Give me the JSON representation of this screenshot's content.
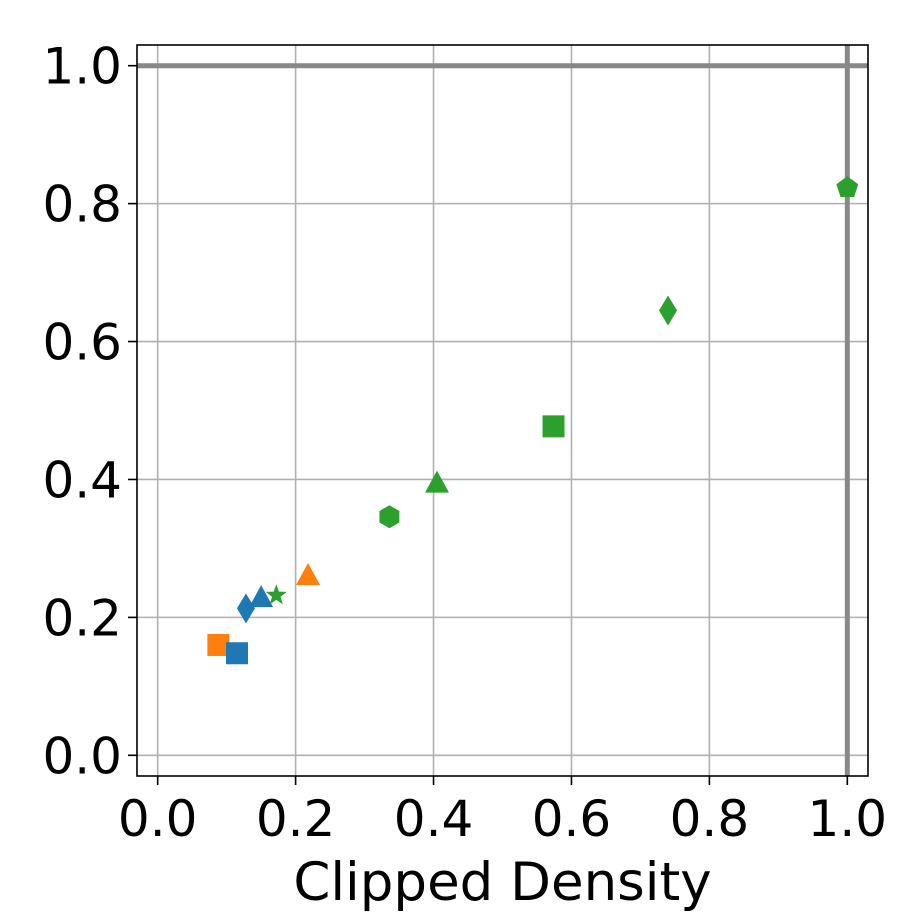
{
  "chart_data": {
    "type": "scatter",
    "title": "",
    "xlabel": "Clipped Density",
    "ylabel": "",
    "xlim": [
      -0.03,
      1.03
    ],
    "ylim": [
      -0.03,
      1.03
    ],
    "x_ticks": [
      "0.0",
      "0.2",
      "0.4",
      "0.6",
      "0.8",
      "1.0"
    ],
    "y_ticks": [
      "0.0",
      "0.2",
      "0.4",
      "0.6",
      "0.8",
      "1.0"
    ],
    "grid": true,
    "reference_lines": [
      {
        "orientation": "horizontal",
        "value": 1.0
      },
      {
        "orientation": "vertical",
        "value": 1.0
      }
    ],
    "points": [
      {
        "x": 0.088,
        "y": 0.16,
        "marker": "square",
        "color": "#ff7f0e"
      },
      {
        "x": 0.115,
        "y": 0.148,
        "marker": "square",
        "color": "#1f77b4"
      },
      {
        "x": 0.128,
        "y": 0.213,
        "marker": "diamond",
        "color": "#1f77b4"
      },
      {
        "x": 0.15,
        "y": 0.228,
        "marker": "triangle",
        "color": "#1f77b4"
      },
      {
        "x": 0.172,
        "y": 0.232,
        "marker": "star",
        "color": "#2ca02c"
      },
      {
        "x": 0.218,
        "y": 0.26,
        "marker": "triangle",
        "color": "#ff7f0e"
      },
      {
        "x": 0.336,
        "y": 0.346,
        "marker": "hexagon",
        "color": "#2ca02c"
      },
      {
        "x": 0.405,
        "y": 0.394,
        "marker": "triangle",
        "color": "#2ca02c"
      },
      {
        "x": 0.574,
        "y": 0.477,
        "marker": "square",
        "color": "#2ca02c"
      },
      {
        "x": 0.74,
        "y": 0.645,
        "marker": "diamond",
        "color": "#2ca02c"
      },
      {
        "x": 1.0,
        "y": 0.823,
        "marker": "pentagon",
        "color": "#2ca02c"
      }
    ]
  }
}
